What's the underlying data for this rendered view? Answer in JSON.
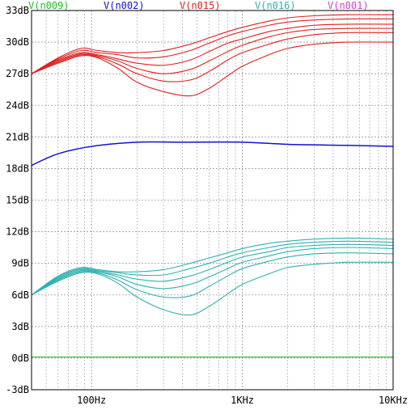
{
  "legend": [
    {
      "label": "V(n009)",
      "color": "#22bb22"
    },
    {
      "label": "V(n002)",
      "color": "#1010d0"
    },
    {
      "label": "V(n015)",
      "color": "#e02020"
    },
    {
      "label": "V(n016)",
      "color": "#30b0b0"
    },
    {
      "label": "V(n001)",
      "color": "#d040d0"
    }
  ],
  "chart_data": {
    "type": "line",
    "x_scale": "log",
    "xlim": [
      40,
      10000
    ],
    "ylim": [
      -3,
      33
    ],
    "x_ticks": [
      {
        "value": 100,
        "label": "100Hz"
      },
      {
        "value": 1000,
        "label": "1KHz"
      },
      {
        "value": 10000,
        "label": "10KHz"
      }
    ],
    "y_ticks": [
      {
        "value": 33,
        "label": "33dB"
      },
      {
        "value": 30,
        "label": "30dB"
      },
      {
        "value": 27,
        "label": "27dB"
      },
      {
        "value": 24,
        "label": "24dB"
      },
      {
        "value": 21,
        "label": "21dB"
      },
      {
        "value": 18,
        "label": "18dB"
      },
      {
        "value": 15,
        "label": "15dB"
      },
      {
        "value": 12,
        "label": "12dB"
      },
      {
        "value": 9,
        "label": "9dB"
      },
      {
        "value": 6,
        "label": "6dB"
      },
      {
        "value": 3,
        "label": "3dB"
      },
      {
        "value": 0,
        "label": "0dB"
      },
      {
        "value": -3,
        "label": "-3dB"
      }
    ],
    "grid": true,
    "series": [
      {
        "name": "V(n009)",
        "color": "#22bb22",
        "traces": [
          {
            "x": [
              40,
              10000
            ],
            "y": [
              0.1,
              0.1
            ]
          }
        ]
      },
      {
        "name": "V(n002)",
        "color": "#1010d0",
        "traces": [
          {
            "x": [
              40,
              60,
              100,
              200,
              400,
              1000,
              2000,
              5000,
              10000
            ],
            "y": [
              18.3,
              19.4,
              20.1,
              20.5,
              20.5,
              20.5,
              20.3,
              20.2,
              20.1
            ]
          }
        ]
      },
      {
        "name": "V(n015)",
        "color": "#e02020",
        "traces": [
          {
            "x": [
              40,
              60,
              85,
              110,
              150,
              200,
              300,
              450,
              600,
              800,
              1000,
              1500,
              2000,
              3000,
              5000,
              10000
            ],
            "y": [
              27.0,
              28.5,
              29.4,
              29.2,
              29.0,
              29.0,
              29.2,
              29.8,
              30.4,
              31.0,
              31.4,
              32.0,
              32.3,
              32.5,
              32.6,
              32.6
            ]
          },
          {
            "x": [
              40,
              60,
              85,
              110,
              150,
              200,
              300,
              450,
              600,
              800,
              1000,
              1500,
              2000,
              3000,
              5000,
              10000
            ],
            "y": [
              27.0,
              28.4,
              29.2,
              29.0,
              28.8,
              28.5,
              28.6,
              29.2,
              29.9,
              30.6,
              31.0,
              31.6,
              31.9,
              32.1,
              32.2,
              32.2
            ]
          },
          {
            "x": [
              40,
              60,
              85,
              110,
              150,
              200,
              300,
              450,
              600,
              800,
              1000,
              1500,
              2000,
              3000,
              5000,
              10000
            ],
            "y": [
              27.0,
              28.3,
              29.0,
              28.8,
              28.4,
              28.0,
              27.8,
              28.3,
              29.1,
              29.9,
              30.3,
              31.0,
              31.3,
              31.6,
              31.7,
              31.7
            ]
          },
          {
            "x": [
              40,
              60,
              85,
              110,
              150,
              200,
              300,
              450,
              600,
              800,
              1000,
              1500,
              2000,
              3000,
              5000,
              10000
            ],
            "y": [
              27.0,
              28.2,
              28.9,
              28.7,
              28.2,
              27.5,
              27.0,
              27.4,
              28.2,
              29.1,
              29.7,
              30.5,
              30.9,
              31.2,
              31.3,
              31.3
            ]
          },
          {
            "x": [
              40,
              60,
              85,
              110,
              150,
              200,
              300,
              450,
              600,
              800,
              1000,
              1500,
              2000,
              3000,
              5000,
              10000
            ],
            "y": [
              27.0,
              28.1,
              28.8,
              28.6,
              27.9,
              27.0,
              26.3,
              26.4,
              27.2,
              28.3,
              29.0,
              29.8,
              30.3,
              30.7,
              30.9,
              30.9
            ]
          },
          {
            "x": [
              40,
              60,
              85,
              110,
              150,
              200,
              300,
              450,
              600,
              800,
              1000,
              1500,
              2000,
              3000,
              5000,
              10000
            ],
            "y": [
              27.0,
              28.0,
              28.7,
              28.5,
              27.5,
              26.2,
              25.3,
              24.9,
              25.6,
              26.8,
              27.7,
              28.8,
              29.4,
              29.8,
              30.0,
              30.0
            ]
          }
        ]
      },
      {
        "name": "V(n016)",
        "color": "#30b0b0",
        "traces": [
          {
            "x": [
              40,
              60,
              85,
              110,
              150,
              200,
              300,
              450,
              600,
              800,
              1000,
              1500,
              2000,
              3000,
              5000,
              10000
            ],
            "y": [
              6.0,
              7.8,
              8.6,
              8.4,
              8.2,
              8.2,
              8.4,
              9.0,
              9.5,
              10.0,
              10.4,
              10.9,
              11.1,
              11.3,
              11.4,
              11.3
            ]
          },
          {
            "x": [
              40,
              60,
              85,
              110,
              150,
              200,
              300,
              450,
              600,
              800,
              1000,
              1500,
              2000,
              3000,
              5000,
              10000
            ],
            "y": [
              6.0,
              7.7,
              8.5,
              8.3,
              8.1,
              7.9,
              7.9,
              8.5,
              9.0,
              9.6,
              10.0,
              10.5,
              10.8,
              11.0,
              11.1,
              11.0
            ]
          },
          {
            "x": [
              40,
              60,
              85,
              110,
              150,
              200,
              300,
              450,
              600,
              800,
              1000,
              1500,
              2000,
              3000,
              5000,
              10000
            ],
            "y": [
              6.0,
              7.6,
              8.4,
              8.2,
              7.9,
              7.5,
              7.3,
              7.8,
              8.4,
              9.1,
              9.6,
              10.1,
              10.5,
              10.7,
              10.8,
              10.7
            ]
          },
          {
            "x": [
              40,
              60,
              85,
              110,
              150,
              200,
              300,
              450,
              600,
              800,
              1000,
              1500,
              2000,
              3000,
              5000,
              10000
            ],
            "y": [
              6.0,
              7.5,
              8.3,
              8.2,
              7.7,
              7.0,
              6.6,
              7.0,
              7.7,
              8.5,
              9.1,
              9.7,
              10.1,
              10.4,
              10.5,
              10.4
            ]
          },
          {
            "x": [
              40,
              60,
              85,
              110,
              150,
              200,
              300,
              450,
              600,
              800,
              1000,
              1500,
              2000,
              3000,
              5000,
              10000
            ],
            "y": [
              6.0,
              7.4,
              8.2,
              8.1,
              7.4,
              6.5,
              5.8,
              5.9,
              6.8,
              7.8,
              8.5,
              9.2,
              9.6,
              9.9,
              10.0,
              9.9
            ]
          },
          {
            "x": [
              40,
              60,
              85,
              110,
              150,
              200,
              300,
              450,
              600,
              800,
              1000,
              1500,
              2000,
              3000,
              5000,
              10000
            ],
            "y": [
              6.0,
              7.3,
              8.1,
              8.0,
              7.1,
              5.8,
              4.6,
              4.1,
              4.9,
              6.1,
              7.0,
              8.0,
              8.6,
              8.9,
              9.1,
              9.1
            ]
          }
        ]
      },
      {
        "name": "V(n001)",
        "color": "#d040d0",
        "traces": []
      }
    ]
  }
}
